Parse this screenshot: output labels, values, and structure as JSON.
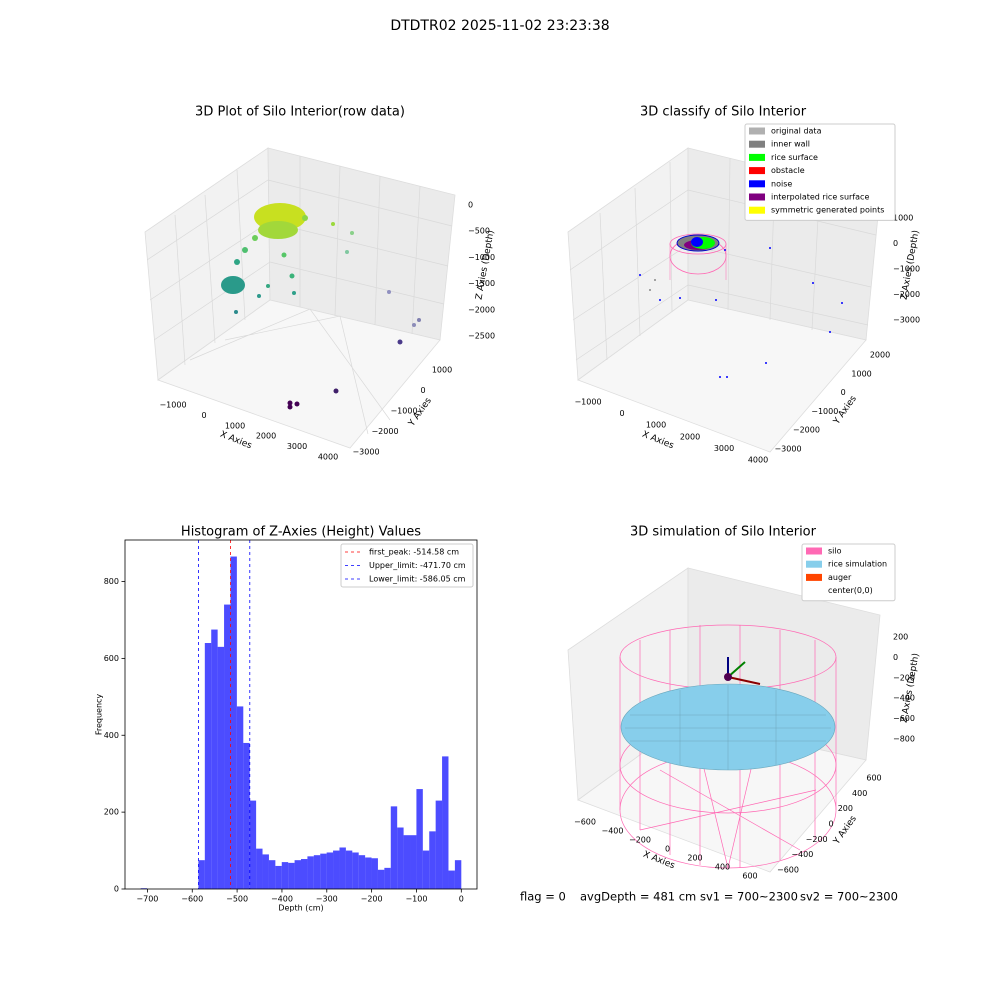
{
  "title": "DTDTR02 2025-11-02 23:23:38",
  "footer": [
    "flag = 0",
    "avgDepth = 481 cm",
    "sv1 = 700~2300",
    "sv2 = 700~2300"
  ],
  "chart_data": [
    {
      "type": "scatter3d",
      "title": "3D Plot of Silo Interior(row data)",
      "xlabel": "X Axies",
      "ylabel": "Y Axies",
      "zlabel": "Z Axies (Depth)",
      "xticks": [
        {
          "value": -1000,
          "label": "−1000"
        },
        0,
        1000,
        2000,
        3000,
        4000
      ],
      "yticks": [
        {
          "value": -3000,
          "label": "−3000"
        },
        {
          "value": -2000,
          "label": "−2000"
        },
        {
          "value": -1000,
          "label": "−1000"
        },
        0,
        1000
      ],
      "zticks": [
        0,
        {
          "value": -500,
          "label": "−500"
        },
        {
          "value": -1000,
          "label": "−1000"
        },
        {
          "value": -1500,
          "label": "−1500"
        },
        {
          "value": -2000,
          "label": "−2000"
        },
        {
          "value": -2500,
          "label": "−2500"
        }
      ]
    },
    {
      "type": "scatter3d",
      "title": "3D classify of Silo Interior",
      "xlabel": "X Axies",
      "ylabel": "Y Axies",
      "zlabel": "Z Axies (Depth)",
      "xticks": [
        {
          "value": -1000,
          "label": "−1000"
        },
        0,
        1000,
        2000,
        3000,
        4000
      ],
      "yticks": [
        {
          "value": -3000,
          "label": "−3000"
        },
        {
          "value": -2000,
          "label": "−2000"
        },
        {
          "value": -1000,
          "label": "−1000"
        },
        0,
        1000,
        2000
      ],
      "zticks": [
        1000,
        0,
        {
          "value": -1000,
          "label": "−1000"
        },
        {
          "value": -2000,
          "label": "−2000"
        },
        {
          "value": -3000,
          "label": "−3000"
        }
      ],
      "legend": [
        {
          "name": "original data",
          "color": "#b0b0b0"
        },
        {
          "name": "inner wall",
          "color": "#808080"
        },
        {
          "name": "rice surface",
          "color": "#00ff00"
        },
        {
          "name": "obstacle",
          "color": "#ff0000"
        },
        {
          "name": "noise",
          "color": "#0000ff"
        },
        {
          "name": "interpolated rice surface",
          "color": "#800080"
        },
        {
          "name": "symmetric generated points",
          "color": "#ffff00"
        }
      ]
    },
    {
      "type": "histogram",
      "title": "Histogram of Z-Axies (Height) Values",
      "xlabel": "Depth (cm)",
      "ylabel": "Frequency",
      "color": "#0000ff",
      "bins": [
        -715,
        -700.7,
        -686.4,
        -672.1,
        -657.8,
        -643.5,
        -629.2,
        -614.9,
        -600.6,
        -586.3,
        -572,
        -557.7,
        -543.4,
        -529.1,
        -514.8,
        -500.5,
        -486.2,
        -471.9,
        -457.6,
        -443.3,
        -429,
        -414.7,
        -400.4,
        -386.1,
        -371.8,
        -357.5,
        -343.2,
        -328.9,
        -314.6,
        -300.3,
        -286,
        -271.7,
        -257.4,
        -243.1,
        -228.8,
        -214.5,
        -200.2,
        -185.9,
        -171.6,
        -157.3,
        -143,
        -128.7,
        -114.4,
        -100.1,
        -85.8,
        -71.5,
        -57.2,
        -42.9,
        -28.6,
        -14.3,
        0
      ],
      "values": [
        2,
        0,
        0,
        0,
        0,
        0,
        0,
        0,
        0,
        75,
        640,
        675,
        630,
        740,
        865,
        475,
        380,
        230,
        105,
        90,
        75,
        60,
        70,
        68,
        75,
        78,
        85,
        88,
        92,
        95,
        100,
        108,
        100,
        95,
        88,
        82,
        80,
        50,
        55,
        215,
        160,
        140,
        140,
        260,
        100,
        150,
        230,
        345,
        48,
        75
      ],
      "xlim": [
        -750,
        35
      ],
      "ylim": [
        0,
        908
      ],
      "xticks": [
        {
          "value": -700,
          "label": "−700"
        },
        {
          "value": -600,
          "label": "−600"
        },
        {
          "value": -500,
          "label": "−500"
        },
        {
          "value": -400,
          "label": "−400"
        },
        {
          "value": -300,
          "label": "−300"
        },
        {
          "value": -200,
          "label": "−200"
        },
        {
          "value": -100,
          "label": "−100"
        },
        0
      ],
      "yticks": [
        0,
        200,
        400,
        600,
        800
      ],
      "vlines": [
        {
          "label": "first_peak: -514.58 cm",
          "value": -514.58,
          "color": "#ff0000"
        },
        {
          "label": "Upper_limit: -471.70 cm",
          "value": -471.7,
          "color": "#0000ff"
        },
        {
          "label": "Lower_limit: -586.05 cm",
          "value": -586.05,
          "color": "#0000ff"
        }
      ],
      "legend_loc": "upper right"
    },
    {
      "type": "surface3d",
      "title": "3D simulation of Silo Interior",
      "xlabel": "X Axies",
      "ylabel": "Y Axies",
      "zlabel": "Z Axies (Depth)",
      "xticks": [
        {
          "value": -600,
          "label": "−600"
        },
        {
          "value": -400,
          "label": "−400"
        },
        {
          "value": -200,
          "label": "−200"
        },
        0,
        200,
        400,
        600
      ],
      "yticks": [
        {
          "value": -600,
          "label": "−600"
        },
        {
          "value": -400,
          "label": "−400"
        },
        {
          "value": -200,
          "label": "−200"
        },
        0,
        200,
        400,
        600
      ],
      "zticks": [
        200,
        0,
        {
          "value": -200,
          "label": "−200"
        },
        {
          "value": -400,
          "label": "−400"
        },
        {
          "value": -600,
          "label": "−600"
        },
        {
          "value": -800,
          "label": "−800"
        }
      ],
      "legend": [
        {
          "name": "silo",
          "color": "#ff69b4"
        },
        {
          "name": "rice simulation",
          "color": "#87ceeb"
        },
        {
          "name": "auger",
          "color": "#ff4500"
        },
        {
          "name": "center(0,0)",
          "color": "#ffffff"
        }
      ]
    }
  ]
}
